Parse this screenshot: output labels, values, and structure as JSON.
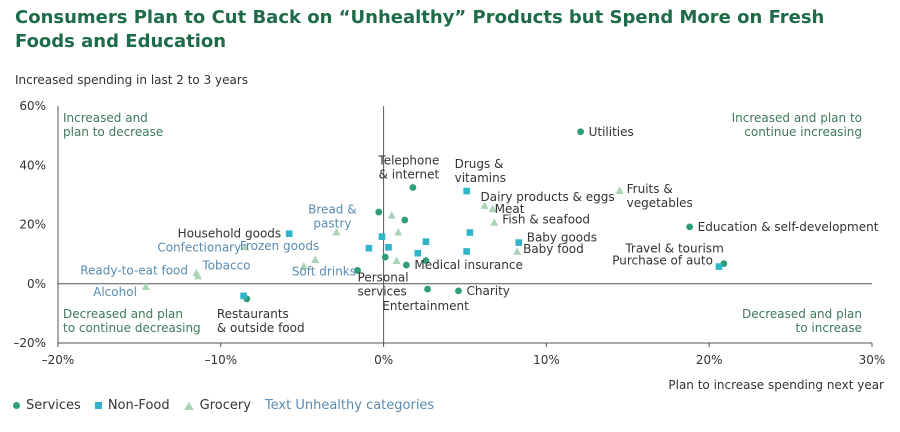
{
  "title_line1": "Consumers Plan to Cut Back on “Unhealthy” Products but Spend More on Fresh",
  "title_line2": "Foods and Education",
  "subtitle": "Increased spending in last 2 to 3 years",
  "colors": {
    "services": "#2e9e78",
    "nonfood": "#2fb4c9",
    "grocery": "#a9d4b6",
    "unhealthy_text": "#5a8bb0",
    "quadrant_text": "#3f7a5a",
    "label_text": "#333333"
  },
  "legend": {
    "services": "Services",
    "nonfood": "Non-Food",
    "grocery": "Grocery",
    "text_note": "Text Unhealthy categories"
  },
  "chart_data": {
    "type": "scatter",
    "title": "Consumers Plan to Cut Back on “Unhealthy” Products but Spend More on Fresh Foods and Education",
    "xlabel": "Plan to increase spending next year",
    "ylabel": "Increased spending in last 2 to 3 years",
    "xlim": [
      -20,
      30
    ],
    "ylim": [
      -20,
      60
    ],
    "x_ticks": [
      -20,
      -10,
      0,
      10,
      20,
      30
    ],
    "x_tick_labels": [
      "–20%",
      "–10%",
      "0%",
      "10%",
      "20%",
      "30%"
    ],
    "y_ticks": [
      -20,
      0,
      20,
      40,
      60
    ],
    "y_tick_labels": [
      "–20%",
      "0%",
      "20%",
      "40%",
      "60%"
    ],
    "quadrant_labels": {
      "top_left": [
        "Increased and",
        "plan to decrease"
      ],
      "top_right": [
        "Increased and plan to",
        "continue increasing"
      ],
      "bottom_left": [
        "Decreased and plan",
        "to continue decreasing"
      ],
      "bottom_right": [
        "Decreased and plan",
        "to increase"
      ]
    },
    "points": [
      {
        "x": 12.1,
        "y": 51.3,
        "series": "services",
        "label": [
          "Utilities"
        ],
        "unhealthy": false
      },
      {
        "x": 1.8,
        "y": 32.5,
        "series": "services",
        "label": [
          "Telephone",
          "& internet"
        ],
        "unhealthy": false
      },
      {
        "x": 18.8,
        "y": 19.2,
        "series": "services",
        "label": [
          "Education & self-development"
        ],
        "unhealthy": false
      },
      {
        "x": 20.9,
        "y": 6.8,
        "series": "services",
        "label": [
          "Travel & tourism"
        ],
        "unhealthy": false
      },
      {
        "x": -1.6,
        "y": 4.5,
        "series": "services",
        "label": [
          "Personal",
          "services"
        ],
        "unhealthy": false
      },
      {
        "x": 1.4,
        "y": 6.3,
        "series": "services",
        "label": [
          "Medical insurance"
        ],
        "unhealthy": false
      },
      {
        "x": 2.7,
        "y": -1.8,
        "series": "services",
        "label": [
          "Entertainment"
        ],
        "unhealthy": false
      },
      {
        "x": 4.6,
        "y": -2.4,
        "series": "services",
        "label": [
          "Charity"
        ],
        "unhealthy": false
      },
      {
        "x": -8.4,
        "y": -5.1,
        "series": "services",
        "label": [
          "Restaurants",
          "& outside food"
        ],
        "unhealthy": false
      },
      {
        "x": -0.3,
        "y": 24.2,
        "series": "services",
        "label": [],
        "unhealthy": false
      },
      {
        "x": 1.3,
        "y": 21.5,
        "series": "services",
        "label": [],
        "unhealthy": false
      },
      {
        "x": 0.1,
        "y": 9.0,
        "series": "services",
        "label": [],
        "unhealthy": false
      },
      {
        "x": 2.6,
        "y": 7.8,
        "series": "services",
        "label": [],
        "unhealthy": false
      },
      {
        "x": 5.1,
        "y": 31.3,
        "series": "nonfood",
        "label": [
          "Drugs &",
          "vitamins"
        ],
        "unhealthy": false
      },
      {
        "x": 8.3,
        "y": 13.9,
        "series": "nonfood",
        "label": [
          "Baby goods"
        ],
        "unhealthy": false
      },
      {
        "x": 20.6,
        "y": 5.8,
        "series": "nonfood",
        "label": [
          "Purchase of auto"
        ],
        "unhealthy": false
      },
      {
        "x": -5.8,
        "y": 16.9,
        "series": "nonfood",
        "label": [
          "Household goods"
        ],
        "unhealthy": false
      },
      {
        "x": -8.6,
        "y": -4.1,
        "series": "nonfood",
        "label": [],
        "unhealthy": false
      },
      {
        "x": -0.9,
        "y": 12.0,
        "series": "nonfood",
        "label": [],
        "unhealthy": false
      },
      {
        "x": -0.1,
        "y": 15.9,
        "series": "nonfood",
        "label": [],
        "unhealthy": false
      },
      {
        "x": 0.3,
        "y": 12.3,
        "series": "nonfood",
        "label": [],
        "unhealthy": false
      },
      {
        "x": 2.6,
        "y": 14.2,
        "series": "nonfood",
        "label": [],
        "unhealthy": false
      },
      {
        "x": 2.1,
        "y": 10.3,
        "series": "nonfood",
        "label": [],
        "unhealthy": false
      },
      {
        "x": 5.3,
        "y": 17.3,
        "series": "nonfood",
        "label": [],
        "unhealthy": false
      },
      {
        "x": 5.1,
        "y": 10.9,
        "series": "nonfood",
        "label": [],
        "unhealthy": false
      },
      {
        "x": 14.5,
        "y": 31.3,
        "series": "grocery",
        "label": [
          "Fruits &",
          "vegetables"
        ],
        "unhealthy": false
      },
      {
        "x": 6.2,
        "y": 26.3,
        "series": "grocery",
        "label": [
          "Dairy products & eggs"
        ],
        "unhealthy": false
      },
      {
        "x": 6.7,
        "y": 25.2,
        "series": "grocery",
        "label": [
          "Meat"
        ],
        "unhealthy": false
      },
      {
        "x": 6.8,
        "y": 20.6,
        "series": "grocery",
        "label": [
          "Fish & seafood"
        ],
        "unhealthy": false
      },
      {
        "x": 8.2,
        "y": 10.8,
        "series": "grocery",
        "label": [
          "Baby food"
        ],
        "unhealthy": false
      },
      {
        "x": 0.5,
        "y": 23.0,
        "series": "grocery",
        "label": [],
        "unhealthy": false
      },
      {
        "x": 0.9,
        "y": 17.3,
        "series": "grocery",
        "label": [],
        "unhealthy": false
      },
      {
        "x": 0.8,
        "y": 7.7,
        "series": "grocery",
        "label": [],
        "unhealthy": false
      },
      {
        "x": -2.9,
        "y": 17.3,
        "series": "grocery",
        "label": [
          "Bread &",
          "pastry"
        ],
        "unhealthy": true
      },
      {
        "x": -8.5,
        "y": 12.3,
        "series": "grocery",
        "label": [
          "Confectionary"
        ],
        "unhealthy": true
      },
      {
        "x": -4.2,
        "y": 8.0,
        "series": "grocery",
        "label": [
          "Frozen goods"
        ],
        "unhealthy": true
      },
      {
        "x": -11.5,
        "y": 3.5,
        "series": "grocery",
        "label": [
          "Tobacco"
        ],
        "unhealthy": true
      },
      {
        "x": -11.4,
        "y": 2.5,
        "series": "grocery",
        "label": [
          "Ready-to-eat food"
        ],
        "unhealthy": true
      },
      {
        "x": -4.9,
        "y": 5.9,
        "series": "grocery",
        "label": [
          "Soft drinks"
        ],
        "unhealthy": true
      },
      {
        "x": -14.6,
        "y": -1.1,
        "series": "grocery",
        "label": [
          "Alcohol"
        ],
        "unhealthy": true
      }
    ]
  }
}
